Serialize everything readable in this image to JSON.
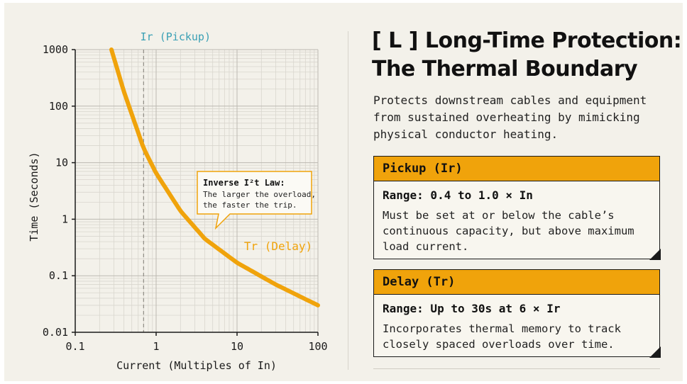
{
  "chart_data": {
    "type": "line",
    "x_scale": "log",
    "y_scale": "log",
    "xlim": [
      0.1,
      100
    ],
    "ylim": [
      0.01,
      1000
    ],
    "xlabel": "Current (Multiples of In)",
    "ylabel": "Time (Seconds)",
    "x_ticks": [
      "0.1",
      "1",
      "10",
      "100"
    ],
    "y_ticks": [
      "1000",
      "100",
      "10",
      "1",
      "0.1",
      "0.01"
    ],
    "x_tick_values": [
      0.1,
      1,
      10,
      100
    ],
    "y_tick_values": [
      1000,
      100,
      10,
      1,
      0.1,
      0.01
    ],
    "grid": true,
    "series": [
      {
        "name": "Tr (Delay)",
        "color": "#f0a30b",
        "x": [
          0.28,
          0.4,
          0.7,
          1,
          2,
          4,
          10,
          30,
          100
        ],
        "y": [
          1000,
          180,
          18,
          6.5,
          1.4,
          0.45,
          0.17,
          0.07,
          0.03
        ]
      }
    ],
    "pickup_line": {
      "label": "Ir (Pickup)",
      "x": 0.7,
      "color": "#3aa0b5"
    },
    "annotations": [
      {
        "title": "Inverse I²t Law:",
        "text": [
          "The larger the overload,",
          "the faster the trip."
        ]
      }
    ]
  },
  "panel": {
    "title_lines": [
      "[ L ] Long-Time Protection:",
      "The Thermal Boundary"
    ],
    "description_lines": [
      "Protects downstream cables and equipment",
      "from sustained overheating by mimicking",
      "physical conductor heating."
    ],
    "cards": [
      {
        "header": "Pickup (Ir)",
        "range": "Range: 0.4 to 1.0 × In",
        "body_lines": [
          "Must be set at or below the cable’s",
          "continuous capacity, but above maximum",
          "load current."
        ]
      },
      {
        "header": "Delay (Tr)",
        "range": "Range: Up to 30s at 6 × Ir",
        "body_lines": [
          "Incorporates thermal memory to track",
          "closely spaced overloads over time."
        ]
      }
    ]
  },
  "colors": {
    "accent": "#f0a30b",
    "pickup": "#3aa0b5",
    "background": "#f3f1ea",
    "text": "#111111"
  }
}
